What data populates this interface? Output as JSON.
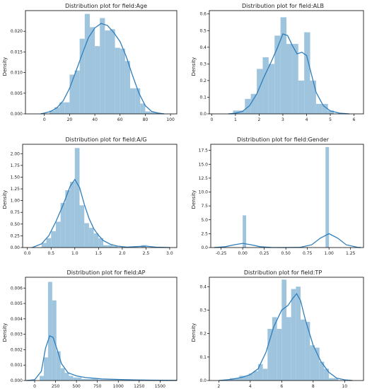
{
  "colors": {
    "bar": "#9ec4de",
    "kde": "#2f7ebc"
  },
  "chart_data": [
    {
      "type": "bar",
      "title": "Distribution plot for field:Age",
      "ylabel": "Density",
      "xlim": [
        -15,
        105
      ],
      "ylim": [
        0,
        0.025
      ],
      "xticks": [
        0,
        20,
        40,
        60,
        80,
        100
      ],
      "xtick_labels": [
        "0",
        "20",
        "40",
        "60",
        "80",
        "100"
      ],
      "yticks": [
        0,
        0.005,
        0.01,
        0.015,
        0.02
      ],
      "ytick_labels": [
        "0.000",
        "0.005",
        "0.010",
        "0.015",
        "0.020"
      ],
      "bins": [
        {
          "x0": 4,
          "x1": 8,
          "value": 0.0008
        },
        {
          "x0": 8,
          "x1": 12,
          "value": 0.0016
        },
        {
          "x0": 12,
          "x1": 16,
          "value": 0.0028
        },
        {
          "x0": 16,
          "x1": 20,
          "value": 0.0028
        },
        {
          "x0": 20,
          "x1": 24,
          "value": 0.0095
        },
        {
          "x0": 24,
          "x1": 28,
          "value": 0.0105
        },
        {
          "x0": 28,
          "x1": 32,
          "value": 0.0182
        },
        {
          "x0": 32,
          "x1": 36,
          "value": 0.0242
        },
        {
          "x0": 36,
          "x1": 40,
          "value": 0.021
        },
        {
          "x0": 40,
          "x1": 44,
          "value": 0.0164
        },
        {
          "x0": 44,
          "x1": 48,
          "value": 0.0232
        },
        {
          "x0": 48,
          "x1": 52,
          "value": 0.0202
        },
        {
          "x0": 52,
          "x1": 56,
          "value": 0.0205
        },
        {
          "x0": 56,
          "x1": 60,
          "value": 0.016
        },
        {
          "x0": 60,
          "x1": 64,
          "value": 0.0158
        },
        {
          "x0": 64,
          "x1": 68,
          "value": 0.0128
        },
        {
          "x0": 68,
          "x1": 72,
          "value": 0.0062
        },
        {
          "x0": 72,
          "x1": 76,
          "value": 0.0062
        },
        {
          "x0": 76,
          "x1": 80,
          "value": 0.0025
        },
        {
          "x0": 80,
          "x1": 84,
          "value": 0.0006
        },
        {
          "x0": 84,
          "x1": 90,
          "value": 0.0004
        }
      ],
      "kde": [
        [
          -3,
          0.0
        ],
        [
          0,
          0.0002
        ],
        [
          5,
          0.0006
        ],
        [
          10,
          0.0015
        ],
        [
          15,
          0.0032
        ],
        [
          20,
          0.0062
        ],
        [
          25,
          0.0103
        ],
        [
          30,
          0.0145
        ],
        [
          35,
          0.0185
        ],
        [
          40,
          0.0208
        ],
        [
          45,
          0.0219
        ],
        [
          50,
          0.0214
        ],
        [
          55,
          0.0197
        ],
        [
          60,
          0.0175
        ],
        [
          65,
          0.0138
        ],
        [
          70,
          0.0092
        ],
        [
          75,
          0.005
        ],
        [
          80,
          0.002
        ],
        [
          85,
          0.0006
        ],
        [
          90,
          0.0002
        ],
        [
          95,
          0.0
        ]
      ]
    },
    {
      "type": "bar",
      "title": "Distribution plot for field:ALB",
      "ylabel": "Density",
      "xlim": [
        -0.1,
        6.4
      ],
      "ylim": [
        0,
        0.62
      ],
      "xticks": [
        0,
        1,
        2,
        3,
        4,
        5,
        6
      ],
      "xtick_labels": [
        "0",
        "1",
        "2",
        "3",
        "4",
        "5",
        "6"
      ],
      "yticks": [
        0,
        0.1,
        0.2,
        0.3,
        0.4,
        0.5,
        0.6
      ],
      "ytick_labels": [
        "0.0",
        "0.1",
        "0.2",
        "0.3",
        "0.4",
        "0.5",
        "0.6"
      ],
      "bins": [
        {
          "x0": 0.9,
          "x1": 1.15,
          "value": 0.02
        },
        {
          "x0": 1.15,
          "x1": 1.4,
          "value": 0.02
        },
        {
          "x0": 1.4,
          "x1": 1.65,
          "value": 0.09
        },
        {
          "x0": 1.65,
          "x1": 1.9,
          "value": 0.12
        },
        {
          "x0": 1.9,
          "x1": 2.15,
          "value": 0.27
        },
        {
          "x0": 2.15,
          "x1": 2.4,
          "value": 0.34
        },
        {
          "x0": 2.4,
          "x1": 2.65,
          "value": 0.3
        },
        {
          "x0": 2.65,
          "x1": 2.9,
          "value": 0.47
        },
        {
          "x0": 2.9,
          "x1": 3.15,
          "value": 0.58
        },
        {
          "x0": 3.15,
          "x1": 3.4,
          "value": 0.42
        },
        {
          "x0": 3.4,
          "x1": 3.65,
          "value": 0.42
        },
        {
          "x0": 3.65,
          "x1": 3.9,
          "value": 0.2
        },
        {
          "x0": 3.9,
          "x1": 4.15,
          "value": 0.49
        },
        {
          "x0": 4.15,
          "x1": 4.4,
          "value": 0.2
        },
        {
          "x0": 4.4,
          "x1": 4.65,
          "value": 0.06
        },
        {
          "x0": 4.65,
          "x1": 4.9,
          "value": 0.06
        },
        {
          "x0": 4.9,
          "x1": 5.15,
          "value": 0.02
        }
      ],
      "kde": [
        [
          0.7,
          0.0
        ],
        [
          1.0,
          0.004
        ],
        [
          1.3,
          0.015
        ],
        [
          1.6,
          0.05
        ],
        [
          1.9,
          0.12
        ],
        [
          2.2,
          0.22
        ],
        [
          2.5,
          0.31
        ],
        [
          2.75,
          0.39
        ],
        [
          3.0,
          0.48
        ],
        [
          3.2,
          0.47
        ],
        [
          3.4,
          0.41
        ],
        [
          3.6,
          0.36
        ],
        [
          3.8,
          0.37
        ],
        [
          4.0,
          0.35
        ],
        [
          4.2,
          0.24
        ],
        [
          4.4,
          0.13
        ],
        [
          4.7,
          0.05
        ],
        [
          5.0,
          0.018
        ],
        [
          5.4,
          0.004
        ],
        [
          5.8,
          0.0
        ]
      ]
    },
    {
      "type": "bar",
      "title": "Distribution plot for field:A/G",
      "ylabel": "Density",
      "xlim": [
        -0.1,
        3.15
      ],
      "ylim": [
        0,
        2.2
      ],
      "xticks": [
        0,
        0.5,
        1,
        1.5,
        2,
        2.5,
        3
      ],
      "xtick_labels": [
        "0.0",
        "0.5",
        "1.0",
        "1.5",
        "2.0",
        "2.5",
        "3.0"
      ],
      "yticks": [
        0,
        0.25,
        0.5,
        0.75,
        1,
        1.25,
        1.5,
        1.75,
        2
      ],
      "ytick_labels": [
        "0.00",
        "0.25",
        "0.50",
        "0.75",
        "1.00",
        "1.25",
        "1.50",
        "1.75",
        "2.00"
      ],
      "bins": [
        {
          "x0": 0.3,
          "x1": 0.4,
          "value": 0.1
        },
        {
          "x0": 0.4,
          "x1": 0.5,
          "value": 0.2
        },
        {
          "x0": 0.5,
          "x1": 0.6,
          "value": 0.35
        },
        {
          "x0": 0.6,
          "x1": 0.7,
          "value": 0.55
        },
        {
          "x0": 0.7,
          "x1": 0.8,
          "value": 0.95
        },
        {
          "x0": 0.8,
          "x1": 0.9,
          "value": 1.22
        },
        {
          "x0": 0.9,
          "x1": 1.0,
          "value": 1.4
        },
        {
          "x0": 1.0,
          "x1": 1.1,
          "value": 2.12
        },
        {
          "x0": 1.1,
          "x1": 1.2,
          "value": 0.9
        },
        {
          "x0": 1.2,
          "x1": 1.3,
          "value": 0.52
        },
        {
          "x0": 1.3,
          "x1": 1.4,
          "value": 0.42
        },
        {
          "x0": 1.4,
          "x1": 1.5,
          "value": 0.3
        },
        {
          "x0": 1.5,
          "x1": 1.6,
          "value": 0.2
        },
        {
          "x0": 1.6,
          "x1": 1.7,
          "value": 0.05
        },
        {
          "x0": 1.7,
          "x1": 1.8,
          "value": 0.05
        },
        {
          "x0": 1.8,
          "x1": 1.9,
          "value": 0.03
        },
        {
          "x0": 2.4,
          "x1": 2.5,
          "value": 0.05
        }
      ],
      "kde": [
        [
          0.1,
          0.0
        ],
        [
          0.3,
          0.08
        ],
        [
          0.45,
          0.25
        ],
        [
          0.6,
          0.55
        ],
        [
          0.75,
          0.9
        ],
        [
          0.9,
          1.3
        ],
        [
          1.0,
          1.45
        ],
        [
          1.1,
          1.28
        ],
        [
          1.2,
          0.92
        ],
        [
          1.3,
          0.62
        ],
        [
          1.4,
          0.4
        ],
        [
          1.5,
          0.26
        ],
        [
          1.6,
          0.15
        ],
        [
          1.75,
          0.07
        ],
        [
          1.9,
          0.03
        ],
        [
          2.1,
          0.01
        ],
        [
          2.3,
          0.02
        ],
        [
          2.5,
          0.03
        ],
        [
          2.7,
          0.01
        ],
        [
          3.0,
          0.0
        ]
      ]
    },
    {
      "type": "bar",
      "title": "Distribution plot for field:Gender",
      "ylabel": "Density",
      "xlim": [
        -0.37,
        1.4
      ],
      "ylim": [
        0,
        18.6
      ],
      "xticks": [
        -0.25,
        0,
        0.25,
        0.5,
        0.75,
        1,
        1.25
      ],
      "xtick_labels": [
        "-0.25",
        "0.00",
        "0.25",
        "0.50",
        "0.75",
        "1.00",
        "1.25"
      ],
      "yticks": [
        0,
        2.5,
        5,
        7.5,
        10,
        12.5,
        15,
        17.5
      ],
      "ytick_labels": [
        "0.0",
        "2.5",
        "5.0",
        "7.5",
        "10.0",
        "12.5",
        "15.0",
        "17.5"
      ],
      "bins": [
        {
          "x0": 0.0,
          "x1": 0.04,
          "value": 5.8
        },
        {
          "x0": 0.96,
          "x1": 1.0,
          "value": 18.1
        }
      ],
      "kde": [
        [
          -0.33,
          0.0
        ],
        [
          -0.2,
          0.15
        ],
        [
          -0.1,
          0.5
        ],
        [
          0.0,
          0.75
        ],
        [
          0.1,
          0.5
        ],
        [
          0.2,
          0.15
        ],
        [
          0.33,
          0.02
        ],
        [
          0.5,
          0.0
        ],
        [
          0.67,
          0.05
        ],
        [
          0.8,
          0.5
        ],
        [
          0.9,
          1.7
        ],
        [
          1.0,
          2.5
        ],
        [
          1.1,
          1.7
        ],
        [
          1.2,
          0.5
        ],
        [
          1.33,
          0.05
        ],
        [
          1.37,
          0.0
        ]
      ]
    },
    {
      "type": "bar",
      "title": "Distribution plot for field:AP",
      "ylabel": "Density",
      "xlim": [
        -110,
        1700
      ],
      "ylim": [
        0,
        0.0067
      ],
      "xticks": [
        0,
        250,
        500,
        750,
        1000,
        1250,
        1500
      ],
      "xtick_labels": [
        "0",
        "250",
        "500",
        "750",
        "1000",
        "1250",
        "1500"
      ],
      "yticks": [
        0,
        0.001,
        0.002,
        0.003,
        0.004,
        0.005,
        0.006
      ],
      "ytick_labels": [
        "0.000",
        "0.001",
        "0.002",
        "0.003",
        "0.004",
        "0.005",
        "0.006"
      ],
      "bins": [
        {
          "x0": 60,
          "x1": 110,
          "value": 0.0003
        },
        {
          "x0": 110,
          "x1": 160,
          "value": 0.0015
        },
        {
          "x0": 160,
          "x1": 210,
          "value": 0.0064
        },
        {
          "x0": 210,
          "x1": 260,
          "value": 0.0052
        },
        {
          "x0": 260,
          "x1": 310,
          "value": 0.0019
        },
        {
          "x0": 310,
          "x1": 360,
          "value": 0.0008
        },
        {
          "x0": 360,
          "x1": 410,
          "value": 0.0005
        },
        {
          "x0": 410,
          "x1": 460,
          "value": 0.0003
        },
        {
          "x0": 460,
          "x1": 510,
          "value": 0.0002
        },
        {
          "x0": 510,
          "x1": 560,
          "value": 0.0002
        },
        {
          "x0": 560,
          "x1": 760,
          "value": 0.0001
        },
        {
          "x0": 760,
          "x1": 1200,
          "value": 4e-05
        }
      ],
      "kde": [
        [
          -100,
          0.0
        ],
        [
          0,
          5e-05
        ],
        [
          80,
          0.0006
        ],
        [
          130,
          0.0021
        ],
        [
          180,
          0.0029
        ],
        [
          220,
          0.0028
        ],
        [
          270,
          0.002
        ],
        [
          320,
          0.0011
        ],
        [
          400,
          0.0005
        ],
        [
          500,
          0.0003
        ],
        [
          600,
          0.0002
        ],
        [
          800,
          0.0001
        ],
        [
          1000,
          7e-05
        ],
        [
          1200,
          4e-05
        ],
        [
          1400,
          2e-05
        ],
        [
          1700,
          1e-05
        ]
      ]
    },
    {
      "type": "bar",
      "title": "Distribution plot for field:TP",
      "ylabel": "Density",
      "xlim": [
        1.4,
        11.2
      ],
      "ylim": [
        0,
        0.44
      ],
      "xticks": [
        2,
        4,
        6,
        8,
        10
      ],
      "xtick_labels": [
        "2",
        "4",
        "6",
        "8",
        "10"
      ],
      "yticks": [
        0,
        0.1,
        0.2,
        0.3,
        0.4
      ],
      "ytick_labels": [
        "0.0",
        "0.1",
        "0.2",
        "0.3",
        "0.4"
      ],
      "bins": [
        {
          "x0": 2.7,
          "x1": 3.0,
          "value": 0.01
        },
        {
          "x0": 3.0,
          "x1": 3.3,
          "value": 0.01
        },
        {
          "x0": 3.3,
          "x1": 3.6,
          "value": 0.02
        },
        {
          "x0": 3.6,
          "x1": 3.9,
          "value": 0.02
        },
        {
          "x0": 3.9,
          "x1": 4.2,
          "value": 0.03
        },
        {
          "x0": 4.2,
          "x1": 4.5,
          "value": 0.04
        },
        {
          "x0": 4.5,
          "x1": 4.8,
          "value": 0.07
        },
        {
          "x0": 4.8,
          "x1": 5.1,
          "value": 0.05
        },
        {
          "x0": 5.1,
          "x1": 5.4,
          "value": 0.22
        },
        {
          "x0": 5.4,
          "x1": 5.7,
          "value": 0.27
        },
        {
          "x0": 5.7,
          "x1": 6.0,
          "value": 0.22
        },
        {
          "x0": 6.0,
          "x1": 6.3,
          "value": 0.43
        },
        {
          "x0": 6.3,
          "x1": 6.6,
          "value": 0.27
        },
        {
          "x0": 6.6,
          "x1": 6.9,
          "value": 0.39
        },
        {
          "x0": 6.9,
          "x1": 7.2,
          "value": 0.4
        },
        {
          "x0": 7.2,
          "x1": 7.5,
          "value": 0.26
        },
        {
          "x0": 7.5,
          "x1": 7.8,
          "value": 0.25
        },
        {
          "x0": 7.8,
          "x1": 8.1,
          "value": 0.15
        },
        {
          "x0": 8.1,
          "x1": 8.4,
          "value": 0.14
        },
        {
          "x0": 8.4,
          "x1": 8.7,
          "value": 0.08
        },
        {
          "x0": 8.7,
          "x1": 9.0,
          "value": 0.05
        },
        {
          "x0": 9.0,
          "x1": 9.3,
          "value": 0.01
        },
        {
          "x0": 9.3,
          "x1": 9.6,
          "value": 0.01
        }
      ],
      "kde": [
        [
          2.0,
          0.0
        ],
        [
          2.8,
          0.005
        ],
        [
          3.5,
          0.014
        ],
        [
          4.0,
          0.025
        ],
        [
          4.5,
          0.05
        ],
        [
          5.0,
          0.12
        ],
        [
          5.5,
          0.23
        ],
        [
          6.0,
          0.3
        ],
        [
          6.4,
          0.32
        ],
        [
          6.7,
          0.35
        ],
        [
          6.95,
          0.37
        ],
        [
          7.2,
          0.34
        ],
        [
          7.5,
          0.26
        ],
        [
          8.0,
          0.15
        ],
        [
          8.5,
          0.08
        ],
        [
          9.0,
          0.035
        ],
        [
          9.5,
          0.01
        ],
        [
          10.0,
          0.003
        ],
        [
          10.5,
          0.0
        ]
      ]
    }
  ]
}
